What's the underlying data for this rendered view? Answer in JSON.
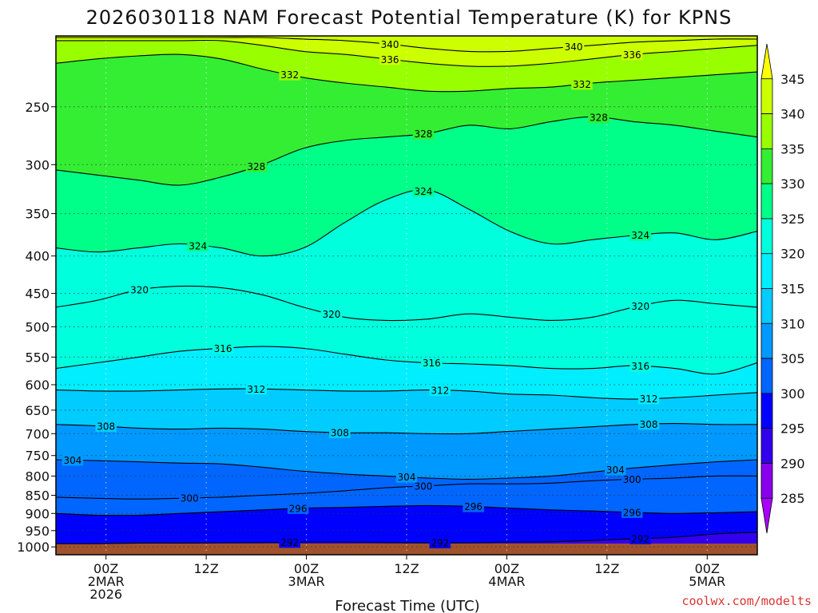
{
  "chart_data": {
    "type": "contour",
    "title": "2026030118 NAM Forecast Potential Temperature (K) for KPNS",
    "xlabel": "Forecast Time (UTC)",
    "ylabel": "",
    "credit": "coolwx.com/modelts",
    "x_ticks": [
      {
        "hour": 6,
        "lines": [
          "00Z",
          "2MAR",
          "2026"
        ]
      },
      {
        "hour": 18,
        "lines": [
          "12Z"
        ]
      },
      {
        "hour": 30,
        "lines": [
          "00Z",
          "3MAR"
        ]
      },
      {
        "hour": 42,
        "lines": [
          "12Z"
        ]
      },
      {
        "hour": 54,
        "lines": [
          "00Z",
          "4MAR"
        ]
      },
      {
        "hour": 66,
        "lines": [
          "12Z"
        ]
      },
      {
        "hour": 78,
        "lines": [
          "00Z",
          "5MAR"
        ]
      }
    ],
    "xlim": [
      0,
      84
    ],
    "y_ticks": [
      250,
      300,
      350,
      400,
      450,
      500,
      550,
      600,
      650,
      700,
      750,
      800,
      850,
      900,
      950,
      1000
    ],
    "ylim": [
      200,
      1025
    ],
    "y_scale": "pressure",
    "grid": true,
    "colorbar": {
      "labels": [
        345,
        340,
        335,
        330,
        325,
        320,
        315,
        310,
        305,
        300,
        295,
        290,
        285
      ],
      "colors": [
        "#ffff00",
        "#ccff00",
        "#99ff00",
        "#33ee33",
        "#00ff88",
        "#00ffdd",
        "#00eeff",
        "#00ccff",
        "#0099ff",
        "#0066ff",
        "#0000ff",
        "#3300ee",
        "#8800ee",
        "#aa00ff"
      ]
    },
    "ground_color": "#a0522d",
    "contours": [
      {
        "level": 292,
        "pressure": [
          990,
          990,
          988,
          988,
          987,
          986,
          985,
          985,
          986,
          987,
          987,
          985,
          984,
          980,
          975,
          970,
          960,
          955
        ],
        "labels": [
          {
            "hour": 28,
            "text": "292"
          },
          {
            "hour": 46,
            "text": "292"
          },
          {
            "hour": 70,
            "text": "292"
          }
        ]
      },
      {
        "level": 296,
        "pressure": [
          900,
          905,
          905,
          900,
          895,
          890,
          885,
          883,
          880,
          878,
          880,
          885,
          890,
          893,
          897,
          900,
          898,
          895
        ],
        "labels": [
          {
            "hour": 29,
            "text": "296"
          },
          {
            "hour": 50,
            "text": "296"
          },
          {
            "hour": 69,
            "text": "296"
          }
        ]
      },
      {
        "level": 300,
        "pressure": [
          855,
          858,
          860,
          858,
          855,
          850,
          845,
          838,
          830,
          825,
          820,
          820,
          818,
          812,
          808,
          805,
          800,
          800
        ],
        "labels": [
          {
            "hour": 16,
            "text": "300"
          },
          {
            "hour": 44,
            "text": "300"
          },
          {
            "hour": 69,
            "text": "300"
          }
        ]
      },
      {
        "level": 304,
        "pressure": [
          760,
          762,
          765,
          768,
          770,
          778,
          788,
          795,
          800,
          805,
          808,
          805,
          800,
          790,
          780,
          772,
          765,
          760
        ],
        "labels": [
          {
            "hour": 2,
            "text": "304"
          },
          {
            "hour": 42,
            "text": "304"
          },
          {
            "hour": 67,
            "text": "304"
          }
        ]
      },
      {
        "level": 308,
        "pressure": [
          680,
          683,
          688,
          690,
          688,
          690,
          695,
          698,
          698,
          700,
          700,
          695,
          690,
          685,
          680,
          678,
          680,
          680
        ],
        "labels": [
          {
            "hour": 6,
            "text": "308"
          },
          {
            "hour": 34,
            "text": "308"
          },
          {
            "hour": 71,
            "text": "308"
          }
        ]
      },
      {
        "level": 312,
        "pressure": [
          610,
          612,
          612,
          610,
          608,
          608,
          610,
          612,
          612,
          610,
          612,
          618,
          620,
          625,
          628,
          625,
          620,
          615
        ],
        "labels": [
          {
            "hour": 24,
            "text": "312"
          },
          {
            "hour": 46,
            "text": "312"
          },
          {
            "hour": 71,
            "text": "312"
          }
        ]
      },
      {
        "level": 316,
        "pressure": [
          570,
          560,
          550,
          540,
          535,
          532,
          535,
          545,
          555,
          560,
          562,
          565,
          570,
          570,
          565,
          570,
          580,
          560
        ],
        "labels": [
          {
            "hour": 20,
            "text": "316"
          },
          {
            "hour": 45,
            "text": "316"
          },
          {
            "hour": 70,
            "text": "316"
          }
        ]
      },
      {
        "level": 320,
        "pressure": [
          470,
          460,
          445,
          440,
          442,
          452,
          470,
          485,
          490,
          488,
          480,
          485,
          490,
          485,
          470,
          460,
          465,
          470
        ],
        "labels": [
          {
            "hour": 10,
            "text": "320"
          },
          {
            "hour": 33,
            "text": "320"
          },
          {
            "hour": 70,
            "text": "320"
          }
        ]
      },
      {
        "level": 324,
        "pressure": [
          390,
          395,
          390,
          385,
          390,
          400,
          390,
          360,
          335,
          325,
          345,
          370,
          385,
          380,
          375,
          372,
          380,
          370
        ],
        "labels": [
          {
            "hour": 17,
            "text": "324"
          },
          {
            "hour": 44,
            "text": "324"
          },
          {
            "hour": 70,
            "text": "324"
          }
        ]
      },
      {
        "level": 328,
        "pressure": [
          305,
          310,
          315,
          320,
          312,
          300,
          285,
          278,
          275,
          272,
          265,
          268,
          262,
          258,
          262,
          265,
          270,
          275
        ],
        "labels": [
          {
            "hour": 24,
            "text": "328"
          },
          {
            "hour": 44,
            "text": "328"
          },
          {
            "hour": 65,
            "text": "328"
          }
        ]
      },
      {
        "level": 332,
        "pressure": [
          218,
          215,
          213,
          212,
          215,
          222,
          228,
          232,
          235,
          238,
          238,
          236,
          235,
          232,
          230,
          228,
          226,
          224
        ],
        "labels": [
          {
            "hour": 28,
            "text": "332"
          },
          {
            "hour": 63,
            "text": "332"
          }
        ]
      },
      {
        "level": 336,
        "pressure": [
          203,
          203,
          203,
          203,
          203,
          206,
          210,
          212,
          215,
          218,
          220,
          220,
          218,
          215,
          212,
          210,
          208,
          206
        ],
        "labels": [
          {
            "hour": 40,
            "text": "336"
          },
          {
            "hour": 69,
            "text": "336"
          }
        ]
      },
      {
        "level": 340,
        "pressure": [
          201,
          201,
          201,
          201,
          201,
          201,
          202,
          203,
          205,
          208,
          210,
          210,
          208,
          206,
          204,
          203,
          202,
          202
        ],
        "labels": [
          {
            "hour": 40,
            "text": "340"
          },
          {
            "hour": 62,
            "text": "340"
          }
        ]
      }
    ]
  }
}
